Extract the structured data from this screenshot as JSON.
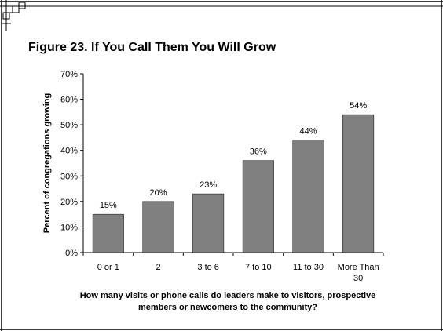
{
  "chart_data": {
    "type": "bar",
    "title": "Figure 23.  If You Call Them You Will Grow",
    "xlabel": "How many visits or phone calls do leaders make to visitors, prospective members or newcomers to the community?",
    "ylabel": "Percent of congregations growing",
    "categories": [
      "0 or 1",
      "2",
      "3 to 6",
      "7 to 10",
      "11 to 30",
      "More Than 30"
    ],
    "category_lines": [
      [
        "0 or 1"
      ],
      [
        "2"
      ],
      [
        "3 to 6"
      ],
      [
        "7 to 10"
      ],
      [
        "11 to 30"
      ],
      [
        "More Than",
        "30"
      ]
    ],
    "values": [
      15,
      20,
      23,
      36,
      44,
      54
    ],
    "value_labels": [
      "15%",
      "20%",
      "23%",
      "36%",
      "44%",
      "54%"
    ],
    "ylim": [
      0,
      70
    ],
    "yticks": [
      0,
      10,
      20,
      30,
      40,
      50,
      60,
      70
    ],
    "ytick_labels": [
      "0%",
      "10%",
      "20%",
      "30%",
      "40%",
      "50%",
      "60%",
      "70%"
    ],
    "bar_color": "#808080",
    "grid": false,
    "legend": "none"
  }
}
